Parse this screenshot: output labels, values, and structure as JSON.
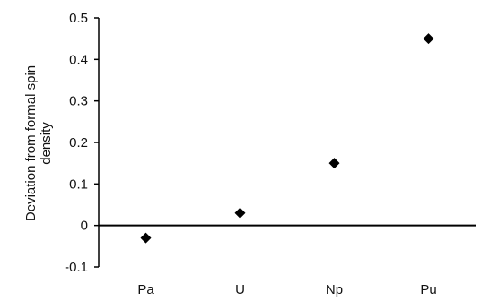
{
  "chart_data": {
    "type": "scatter",
    "title": "",
    "xlabel": "",
    "ylabel": "Deviation from formal spin density",
    "ylabel_lines": [
      "Deviation from formal spin",
      "density"
    ],
    "categories": [
      "Pa",
      "U",
      "Np",
      "Pu"
    ],
    "series": [
      {
        "values": [
          -0.03,
          0.03,
          0.15,
          0.45
        ],
        "marker": "diamond",
        "color": "#000000"
      }
    ],
    "ylim": [
      -0.1,
      0.5
    ],
    "yticks": [
      -0.1,
      0,
      0.1,
      0.2,
      0.3,
      0.4,
      0.5
    ],
    "ytick_labels": [
      "-0.1",
      "0",
      "0.1",
      "0.2",
      "0.3",
      "0.4",
      "0.5"
    ],
    "grid": false,
    "legend": "none"
  }
}
